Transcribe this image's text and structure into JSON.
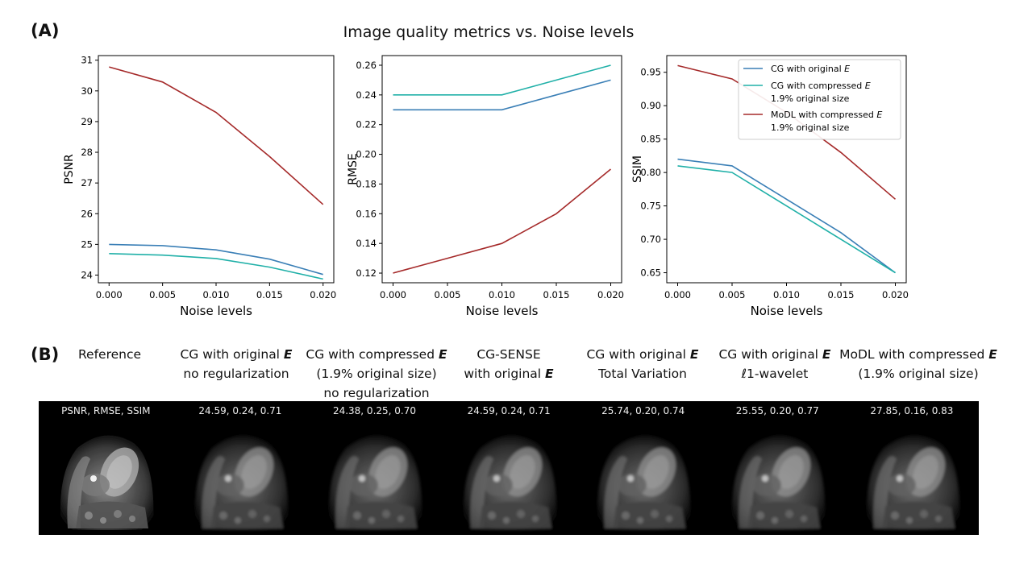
{
  "panel_a_label": "(A)",
  "panel_b_label": "(B)",
  "figure_title": "Image quality metrics vs. Noise levels",
  "colors": {
    "cg_original": "#3a7fb6",
    "cg_compressed": "#20b0a8",
    "modl": "#a52a2a"
  },
  "chart_data": [
    {
      "type": "line",
      "xlabel": "Noise levels",
      "ylabel": "PSNR",
      "x": [
        0.0,
        0.005,
        0.01,
        0.015,
        0.02
      ],
      "x_ticks": [
        "0.000",
        "0.005",
        "0.010",
        "0.015",
        "0.020"
      ],
      "ylim": [
        23.75,
        31.15
      ],
      "y_ticks": [
        "24",
        "25",
        "26",
        "27",
        "28",
        "29",
        "30",
        "31"
      ],
      "series": [
        {
          "name": "CG with original E",
          "color": "#3a7fb6",
          "values": [
            25.0,
            24.96,
            24.82,
            24.52,
            24.02
          ]
        },
        {
          "name": "CG with compressed E 1.9% original size",
          "color": "#20b0a8",
          "values": [
            24.7,
            24.65,
            24.54,
            24.26,
            23.87
          ]
        },
        {
          "name": "MoDL with compressed E 1.9% original size",
          "color": "#a52a2a",
          "values": [
            30.78,
            30.29,
            29.3,
            27.86,
            26.3
          ]
        }
      ]
    },
    {
      "type": "line",
      "xlabel": "Noise levels",
      "ylabel": "RMSE",
      "x": [
        0.0,
        0.005,
        0.01,
        0.015,
        0.02
      ],
      "x_ticks": [
        "0.000",
        "0.005",
        "0.010",
        "0.015",
        "0.020"
      ],
      "ylim": [
        0.1135,
        0.2665
      ],
      "y_ticks": [
        "0.12",
        "0.14",
        "0.16",
        "0.18",
        "0.20",
        "0.22",
        "0.24",
        "0.26"
      ],
      "series": [
        {
          "name": "CG with original E",
          "color": "#3a7fb6",
          "values": [
            0.23,
            0.23,
            0.23,
            0.24,
            0.25
          ]
        },
        {
          "name": "CG with compressed E 1.9% original size",
          "color": "#20b0a8",
          "values": [
            0.24,
            0.24,
            0.24,
            0.25,
            0.26
          ]
        },
        {
          "name": "MoDL with compressed E 1.9% original size",
          "color": "#a52a2a",
          "values": [
            0.12,
            0.13,
            0.14,
            0.16,
            0.19
          ]
        }
      ]
    },
    {
      "type": "line",
      "xlabel": "Noise levels",
      "ylabel": "SSIM",
      "x": [
        0.0,
        0.005,
        0.01,
        0.015,
        0.02
      ],
      "x_ticks": [
        "0.000",
        "0.005",
        "0.010",
        "0.015",
        "0.020"
      ],
      "ylim": [
        0.635,
        0.975
      ],
      "y_ticks": [
        "0.65",
        "0.70",
        "0.75",
        "0.80",
        "0.85",
        "0.90",
        "0.95"
      ],
      "legend_position": "top-right",
      "series": [
        {
          "name": "CG with original E",
          "color": "#3a7fb6",
          "values": [
            0.82,
            0.81,
            0.76,
            0.71,
            0.65
          ]
        },
        {
          "name": "CG with compressed E 1.9% original size",
          "color": "#20b0a8",
          "values": [
            0.81,
            0.8,
            0.75,
            0.7,
            0.65
          ]
        },
        {
          "name": "MoDL with compressed E 1.9% original size",
          "color": "#a52a2a",
          "values": [
            0.96,
            0.94,
            0.89,
            0.83,
            0.76
          ]
        }
      ]
    }
  ],
  "legend": [
    {
      "line1": "CG with original ",
      "sym": "E",
      "line2": ""
    },
    {
      "line1": "CG with compressed ",
      "sym": "E",
      "line2": "1.9% original size"
    },
    {
      "line1": "MoDL with compressed ",
      "sym": "E",
      "line2": "1.9% original size"
    }
  ],
  "columns": [
    {
      "lines": [
        "Reference"
      ],
      "metric": "PSNR, RMSE, SSIM"
    },
    {
      "lines": [
        "CG with original |E|",
        "no regularization"
      ],
      "metric": "24.59, 0.24, 0.71"
    },
    {
      "lines": [
        "CG with compressed |E|",
        "(1.9% original size)",
        "no regularization"
      ],
      "metric": "24.38, 0.25, 0.70"
    },
    {
      "lines": [
        "CG-SENSE",
        "with original |E|"
      ],
      "metric": "24.59, 0.24, 0.71"
    },
    {
      "lines": [
        "CG with original |E|",
        "Total Variation"
      ],
      "metric": "25.74, 0.20, 0.74"
    },
    {
      "lines": [
        "CG with original |E|",
        "ℓ1-wavelet"
      ],
      "metric": "25.55, 0.20, 0.77"
    },
    {
      "lines": [
        "MoDL with compressed |E|",
        "(1.9% original size)"
      ],
      "metric": "27.85, 0.16, 0.83"
    }
  ]
}
